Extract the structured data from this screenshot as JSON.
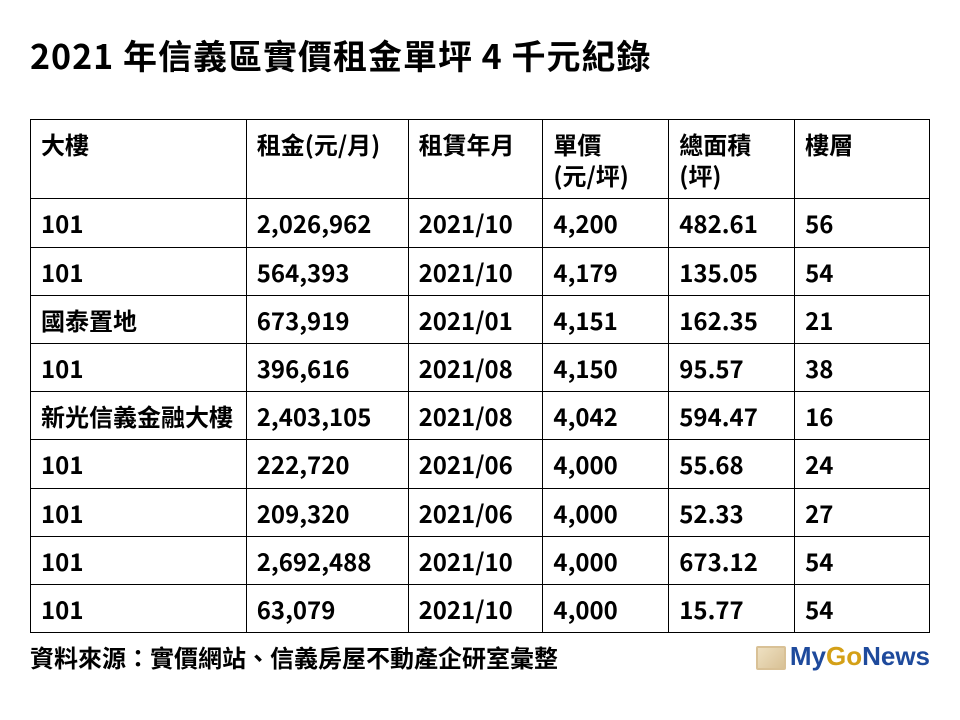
{
  "title": "2021 年信義區實價租金單坪 4 千元紀錄",
  "table": {
    "columns": [
      {
        "key": "building",
        "label_line1": "大樓",
        "label_line2": ""
      },
      {
        "key": "rent",
        "label_line1": "租金(元/月)",
        "label_line2": ""
      },
      {
        "key": "date",
        "label_line1": "租賃年月",
        "label_line2": ""
      },
      {
        "key": "unit",
        "label_line1": "單價",
        "label_line2": "(元/坪)"
      },
      {
        "key": "area",
        "label_line1": "總面積",
        "label_line2": "(坪)"
      },
      {
        "key": "floor",
        "label_line1": "樓層",
        "label_line2": ""
      }
    ],
    "rows": [
      {
        "building": "101",
        "rent": "2,026,962",
        "date": "2021/10",
        "unit": "4,200",
        "area": "482.61",
        "floor": "56"
      },
      {
        "building": "101",
        "rent": "564,393",
        "date": "2021/10",
        "unit": "4,179",
        "area": "135.05",
        "floor": "54"
      },
      {
        "building": "國泰置地",
        "rent": "673,919",
        "date": "2021/01",
        "unit": "4,151",
        "area": "162.35",
        "floor": "21"
      },
      {
        "building": "101",
        "rent": "396,616",
        "date": "2021/08",
        "unit": "4,150",
        "area": "95.57",
        "floor": "38"
      },
      {
        "building": "新光信義金融大樓",
        "rent": "2,403,105",
        "date": "2021/08",
        "unit": "4,042",
        "area": "594.47",
        "floor": "16"
      },
      {
        "building": "101",
        "rent": "222,720",
        "date": "2021/06",
        "unit": "4,000",
        "area": "55.68",
        "floor": "24"
      },
      {
        "building": "101",
        "rent": "209,320",
        "date": "2021/06",
        "unit": "4,000",
        "area": "52.33",
        "floor": "27"
      },
      {
        "building": "101",
        "rent": "2,692,488",
        "date": "2021/10",
        "unit": "4,000",
        "area": "673.12",
        "floor": "54"
      },
      {
        "building": "101",
        "rent": "63,079",
        "date": "2021/10",
        "unit": "4,000",
        "area": "15.77",
        "floor": "54"
      }
    ],
    "border_color": "#000000",
    "background_color": "#ffffff",
    "font_size": 24,
    "font_weight": "bold"
  },
  "source": "資料來源：實價網站、信義房屋不動產企研室彙整",
  "watermark": {
    "my": "My",
    "go": "Go",
    "news": "News",
    "my_color": "#1e4a9c",
    "go_color": "#d4a017",
    "news_color": "#1e4a9c"
  }
}
